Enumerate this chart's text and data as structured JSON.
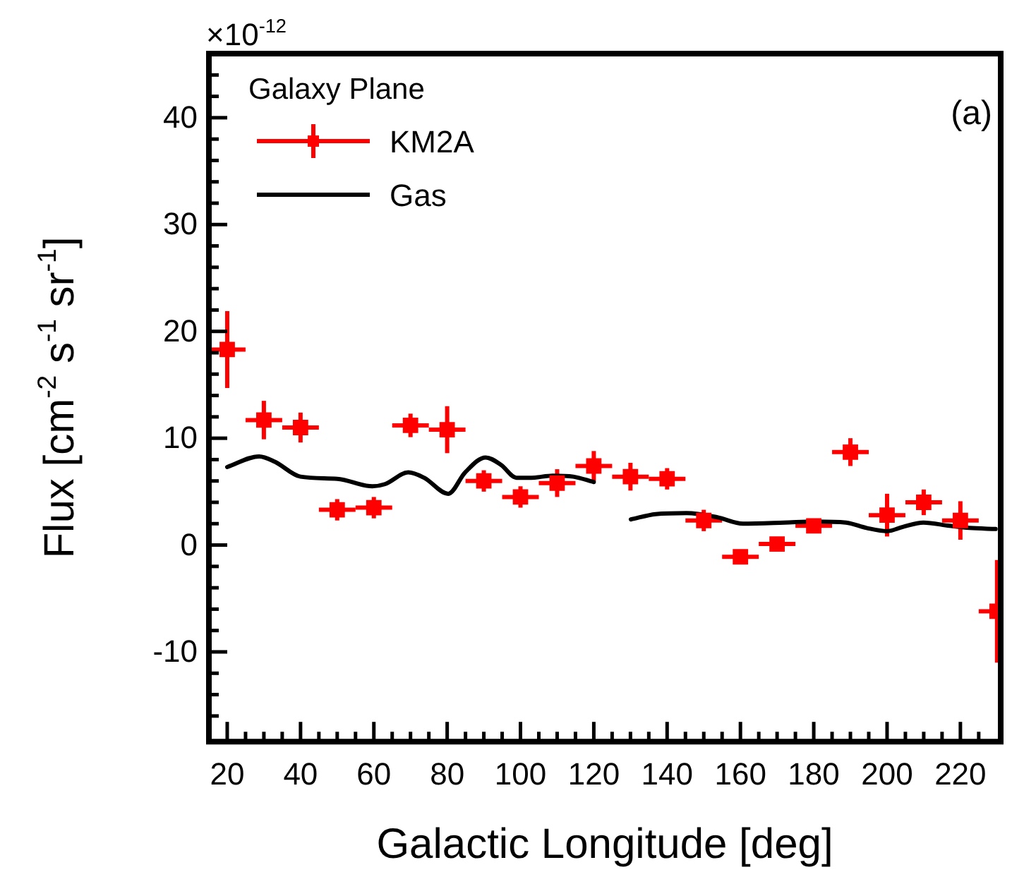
{
  "chart_data": {
    "type": "scatter",
    "xlabel": "Galactic Longitude [deg]",
    "ylabel": "Flux [cm$^{-2}$ s$^{-1}$ sr$^{-1}$]",
    "legend_title": "Galaxy Plane",
    "annotations": [
      "×10$^{-12}$",
      "(a)"
    ],
    "xlim": [
      15,
      231
    ],
    "ylim": [
      -18.4,
      46
    ],
    "xticks": [
      20,
      {
        "value": 25,
        "label": null
      },
      40,
      {
        "value": 30,
        "label": null
      },
      {
        "value": 35,
        "label": null
      },
      {
        "value": 45,
        "label": null
      },
      {
        "value": 50,
        "label": null
      },
      {
        "value": 55,
        "label": null
      },
      60,
      {
        "value": 65,
        "label": null
      },
      {
        "value": 70,
        "label": null
      },
      {
        "value": 75,
        "label": null
      },
      80,
      {
        "value": 85,
        "label": null
      },
      {
        "value": 90,
        "label": null
      },
      {
        "value": 95,
        "label": null
      },
      100,
      {
        "value": 105,
        "label": null
      },
      {
        "value": 110,
        "label": null
      },
      {
        "value": 115,
        "label": null
      },
      120,
      {
        "value": 125,
        "label": null
      },
      {
        "value": 130,
        "label": null
      },
      {
        "value": 135,
        "label": null
      },
      140,
      {
        "value": 145,
        "label": null
      },
      {
        "value": 150,
        "label": null
      },
      {
        "value": 155,
        "label": null
      },
      160,
      {
        "value": 165,
        "label": null
      },
      {
        "value": 170,
        "label": null
      },
      {
        "value": 175,
        "label": null
      },
      180,
      {
        "value": 185,
        "label": null
      },
      {
        "value": 190,
        "label": null
      },
      {
        "value": 195,
        "label": null
      },
      200,
      {
        "value": 205,
        "label": null
      },
      {
        "value": 210,
        "label": null
      },
      {
        "value": 215,
        "label": null
      },
      220,
      {
        "value": 225,
        "label": null
      }
    ],
    "yticks": [
      {
        "value": -16,
        "label": null
      },
      {
        "value": -14,
        "label": null
      },
      {
        "value": -12,
        "label": null
      },
      -10,
      {
        "value": -8,
        "label": null
      },
      {
        "value": -6,
        "label": null
      },
      {
        "value": -4,
        "label": null
      },
      {
        "value": -2,
        "label": null
      },
      0,
      {
        "value": 2,
        "label": null
      },
      {
        "value": 4,
        "label": null
      },
      {
        "value": 6,
        "label": null
      },
      {
        "value": 8,
        "label": null
      },
      10,
      {
        "value": 12,
        "label": null
      },
      {
        "value": 14,
        "label": null
      },
      {
        "value": 16,
        "label": null
      },
      {
        "value": 18,
        "label": null
      },
      20,
      {
        "value": 22,
        "label": null
      },
      {
        "value": 24,
        "label": null
      },
      {
        "value": 26,
        "label": null
      },
      {
        "value": 28,
        "label": null
      },
      30,
      {
        "value": 32,
        "label": null
      },
      {
        "value": 34,
        "label": null
      },
      {
        "value": 36,
        "label": null
      },
      {
        "value": 38,
        "label": null
      },
      40,
      {
        "value": 42,
        "label": null
      },
      {
        "value": 44,
        "label": null
      }
    ],
    "grid": false,
    "legend": "top left",
    "marker": "square",
    "x": [
      20,
      30,
      40,
      50,
      60,
      70,
      80,
      90,
      100,
      110,
      120,
      130,
      140,
      150,
      160,
      170,
      180,
      190,
      200,
      210,
      220,
      230
    ],
    "series": [
      {
        "name": "KM2A",
        "color": "#ff0000",
        "values": [
          18.3,
          11.7,
          11.0,
          3.3,
          3.5,
          11.2,
          10.8,
          6.0,
          4.5,
          5.8,
          7.4,
          6.4,
          6.2,
          2.3,
          -1.1,
          0.1,
          1.8,
          8.7,
          2.8,
          4.0,
          2.3,
          -6.2
        ],
        "errors": [
          3.6,
          1.8,
          1.4,
          1.0,
          1.0,
          1.1,
          2.2,
          1.0,
          1.0,
          1.3,
          1.4,
          1.3,
          1.0,
          1.0,
          0.6,
          0.5,
          0.6,
          1.3,
          2.0,
          1.2,
          1.8,
          4.8
        ],
        "xerrors": [
          5,
          5,
          5,
          5,
          5,
          5,
          5,
          5,
          5,
          5,
          5,
          5,
          5,
          5,
          5,
          5,
          5,
          5,
          5,
          5,
          5,
          [
            225,
            230
          ]
        ]
      },
      {
        "name": "Gas",
        "type": "line",
        "color": "#000000",
        "marker": "none",
        "x": [
          20,
          28.7,
          33,
          40,
          50,
          59.6,
          63,
          69.4,
          73.7,
          80.3,
          84.9,
          90.5,
          94.7,
          98.9,
          103,
          108.8,
          114.4,
          120,
          125,
          130.1,
          136.9,
          145.3,
          153.7,
          160.7,
          172,
          180.4,
          188.8,
          194.4,
          200,
          204.3,
          209.9,
          217,
          222.5,
          229.6
        ],
        "values": [
          7.3,
          8.3,
          7.8,
          6.4,
          6.2,
          5.5,
          5.7,
          6.8,
          6.3,
          4.8,
          6.8,
          8.2,
          7.5,
          6.3,
          6.3,
          6.5,
          6.4,
          5.9,
          null,
          2.4,
          2.9,
          3.0,
          2.6,
          2.0,
          2.1,
          2.2,
          2.1,
          1.6,
          1.3,
          1.7,
          2.1,
          1.8,
          1.6,
          1.5
        ]
      }
    ]
  }
}
